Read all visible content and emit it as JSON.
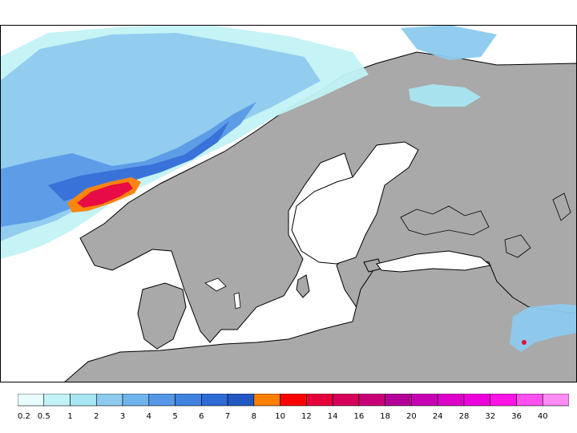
{
  "legend": {
    "bins": [
      {
        "label": "0.2",
        "color": "#e8fdfd"
      },
      {
        "label": "0.5",
        "color": "#c2f3f6"
      },
      {
        "label": "1",
        "color": "#a8e6f3"
      },
      {
        "label": "2",
        "color": "#8dcbef"
      },
      {
        "label": "3",
        "color": "#70b4ec"
      },
      {
        "label": "4",
        "color": "#5598e6"
      },
      {
        "label": "5",
        "color": "#3f82e0"
      },
      {
        "label": "6",
        "color": "#2f6bd6"
      },
      {
        "label": "7",
        "color": "#2158c4"
      },
      {
        "label": "8",
        "color": "#ff7f00"
      },
      {
        "label": "10",
        "color": "#ff0000"
      },
      {
        "label": "12",
        "color": "#e6003c"
      },
      {
        "label": "14",
        "color": "#d6005a"
      },
      {
        "label": "16",
        "color": "#c80078"
      },
      {
        "label": "18",
        "color": "#b40096"
      },
      {
        "label": "20",
        "color": "#c800b4"
      },
      {
        "label": "24",
        "color": "#dc00c8"
      },
      {
        "label": "28",
        "color": "#ee00dc"
      },
      {
        "label": "32",
        "color": "#ff14e6"
      },
      {
        "label": "36",
        "color": "#ff50f0"
      },
      {
        "label": "40",
        "color": "#ff8cf5"
      }
    ]
  },
  "map": {
    "region": "Scandinavia and the Baltic",
    "colors": {
      "land": "#a9a9a9",
      "sea": "#ffffff",
      "coastline": "#000000",
      "frame": "#000000"
    }
  }
}
